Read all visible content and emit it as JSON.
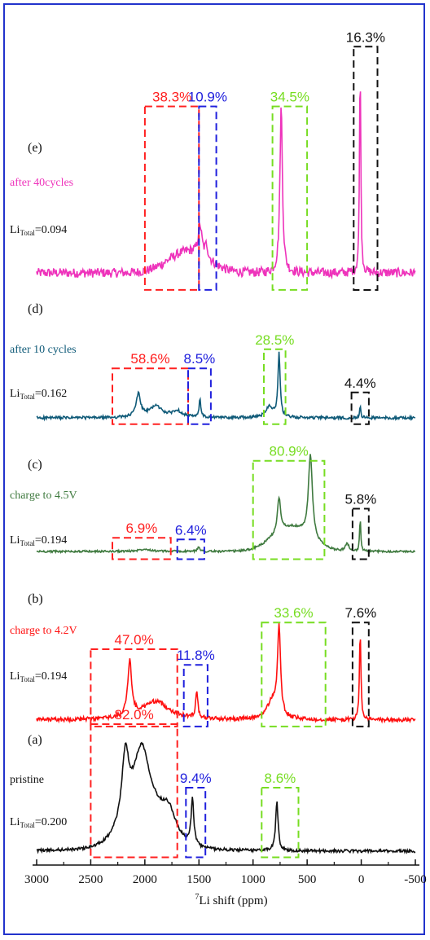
{
  "chart_data": {
    "type": "line",
    "xlabel_main": "Li shift (ppm)",
    "xlabel_sup": "7",
    "xlim": [
      3000,
      -500
    ],
    "x_ticks": [
      3000,
      2500,
      2000,
      1500,
      1000,
      500,
      0,
      -500
    ],
    "x_tick_labels": [
      "3000",
      "2500",
      "2000",
      "1500",
      "1000",
      "500",
      "0",
      "-500"
    ],
    "colors": {
      "red": "#ff2020",
      "blue": "#2020dd",
      "green": "#77dd22",
      "black": "#111111"
    },
    "panels": [
      {
        "id": "e",
        "panel_label": "(e)",
        "name": "after 40cycles",
        "li_prefix": "Li",
        "li_sub": "Total",
        "li_value": "=0.094",
        "color": "#ee33bb",
        "peaks": [
          {
            "x": 1490,
            "h": 0.14,
            "w": 20
          },
          {
            "x": 1430,
            "h": 0.06,
            "w": 15
          },
          {
            "x": 740,
            "h": 0.78,
            "w": 14
          },
          {
            "x": 10,
            "h": 1.0,
            "w": 7
          }
        ],
        "humps": [
          {
            "x": 1600,
            "h": 0.1,
            "w": 260
          }
        ],
        "noise": 0.022,
        "boxes": [
          {
            "x1": 2000,
            "x2": 1500,
            "y1": 0.78,
            "y2": -0.08,
            "color": "red",
            "label": "38.3%"
          },
          {
            "x1": 1500,
            "x2": 1340,
            "y1": 0.78,
            "y2": -0.08,
            "color": "blue",
            "label": "10.9%"
          },
          {
            "x1": 820,
            "x2": 500,
            "y1": 0.78,
            "y2": -0.08,
            "color": "green",
            "label": "34.5%"
          },
          {
            "x1": 70,
            "x2": -150,
            "y1": 1.06,
            "y2": -0.08,
            "color": "black",
            "label": "16.3%"
          }
        ]
      },
      {
        "id": "d",
        "panel_label": "(d)",
        "name": "after 10 cycles",
        "li_prefix": "Li",
        "li_sub": "Total",
        "li_value": "=0.162",
        "color": "#0f5a78",
        "peaks": [
          {
            "x": 2060,
            "h": 0.36,
            "w": 25
          },
          {
            "x": 1900,
            "h": 0.18,
            "w": 70
          },
          {
            "x": 1700,
            "h": 0.1,
            "w": 60
          },
          {
            "x": 1490,
            "h": 0.3,
            "w": 9
          },
          {
            "x": 760,
            "h": 1.0,
            "w": 12
          },
          {
            "x": 850,
            "h": 0.18,
            "w": 40
          },
          {
            "x": 10,
            "h": 0.2,
            "w": 7
          }
        ],
        "humps": [],
        "noise": 0.022,
        "boxes": [
          {
            "x1": 2300,
            "x2": 1600,
            "y1": 0.78,
            "y2": -0.1,
            "color": "red",
            "label": "58.6%"
          },
          {
            "x1": 1600,
            "x2": 1390,
            "y1": 0.78,
            "y2": -0.1,
            "color": "blue",
            "label": "8.5%"
          },
          {
            "x1": 900,
            "x2": 700,
            "y1": 1.08,
            "y2": -0.1,
            "color": "green",
            "label": "28.5%"
          },
          {
            "x1": 90,
            "x2": -70,
            "y1": 0.4,
            "y2": -0.1,
            "color": "black",
            "label": "4.4%"
          }
        ]
      },
      {
        "id": "c",
        "panel_label": "(c)",
        "name": "charge to 4.5V",
        "li_prefix": "Li",
        "li_sub": "Total",
        "li_value": "=0.194",
        "color": "#3f7a3f",
        "peaks": [
          {
            "x": 2000,
            "h": 0.03,
            "w": 60
          },
          {
            "x": 1500,
            "h": 0.06,
            "w": 12
          },
          {
            "x": 760,
            "h": 0.4,
            "w": 18
          },
          {
            "x": 470,
            "h": 0.98,
            "w": 22
          },
          {
            "x": 130,
            "h": 0.09,
            "w": 20
          },
          {
            "x": 10,
            "h": 0.4,
            "w": 6
          }
        ],
        "humps": [
          {
            "x": 650,
            "h": 0.28,
            "w": 240
          }
        ],
        "noise": 0.012,
        "boxes": [
          {
            "x1": 2300,
            "x2": 1760,
            "y1": 0.16,
            "y2": -0.09,
            "color": "red",
            "label": "6.9%"
          },
          {
            "x1": 1700,
            "x2": 1450,
            "y1": 0.14,
            "y2": -0.09,
            "color": "blue",
            "label": "6.4%"
          },
          {
            "x1": 1000,
            "x2": 340,
            "y1": 1.06,
            "y2": -0.09,
            "color": "green",
            "label": "80.9%"
          },
          {
            "x1": 80,
            "x2": -70,
            "y1": 0.5,
            "y2": -0.09,
            "color": "black",
            "label": "5.8%"
          }
        ]
      },
      {
        "id": "b",
        "panel_label": "(b)",
        "name": "charge to 4.2V",
        "li_prefix": "Li",
        "li_sub": "Total",
        "li_value": "=0.194",
        "color": "#ff1010",
        "peaks": [
          {
            "x": 2140,
            "h": 0.6,
            "w": 22
          },
          {
            "x": 1900,
            "h": 0.2,
            "w": 150
          },
          {
            "x": 1520,
            "h": 0.3,
            "w": 12
          },
          {
            "x": 760,
            "h": 0.96,
            "w": 16
          },
          {
            "x": 820,
            "h": 0.2,
            "w": 60
          },
          {
            "x": 10,
            "h": 0.98,
            "w": 8
          }
        ],
        "humps": [],
        "noise": 0.022,
        "boxes": [
          {
            "x1": 2500,
            "x2": 1700,
            "y1": 0.77,
            "y2": -0.07,
            "color": "red",
            "label": "47.0%"
          },
          {
            "x1": 1640,
            "x2": 1420,
            "y1": 0.6,
            "y2": -0.07,
            "color": "blue",
            "label": "11.8%"
          },
          {
            "x1": 920,
            "x2": 330,
            "y1": 1.06,
            "y2": -0.07,
            "color": "green",
            "label": "33.6%"
          },
          {
            "x1": 80,
            "x2": -70,
            "y1": 1.06,
            "y2": -0.07,
            "color": "black",
            "label": "7.6%"
          }
        ]
      },
      {
        "id": "a",
        "panel_label": "(a)",
        "name": "pristine",
        "li_prefix": "Li",
        "li_sub": "Total",
        "li_value": "=0.200",
        "color": "#111111",
        "peaks": [
          {
            "x": 2180,
            "h": 0.55,
            "w": 40
          },
          {
            "x": 2030,
            "h": 0.55,
            "w": 90
          },
          {
            "x": 1780,
            "h": 0.2,
            "w": 80
          },
          {
            "x": 1560,
            "h": 0.38,
            "w": 15
          },
          {
            "x": 780,
            "h": 0.4,
            "w": 14
          }
        ],
        "humps": [
          {
            "x": 2000,
            "h": 0.28,
            "w": 260
          }
        ],
        "noise": 0.012,
        "boxes": [
          {
            "x1": 2500,
            "x2": 1700,
            "y1": 1.04,
            "y2": -0.05,
            "color": "red",
            "label": "82.0%"
          },
          {
            "x1": 1620,
            "x2": 1440,
            "y1": 0.52,
            "y2": -0.05,
            "color": "blue",
            "label": "9.4%"
          },
          {
            "x1": 920,
            "x2": 580,
            "y1": 0.52,
            "y2": -0.05,
            "color": "green",
            "label": "8.6%"
          }
        ]
      }
    ]
  }
}
